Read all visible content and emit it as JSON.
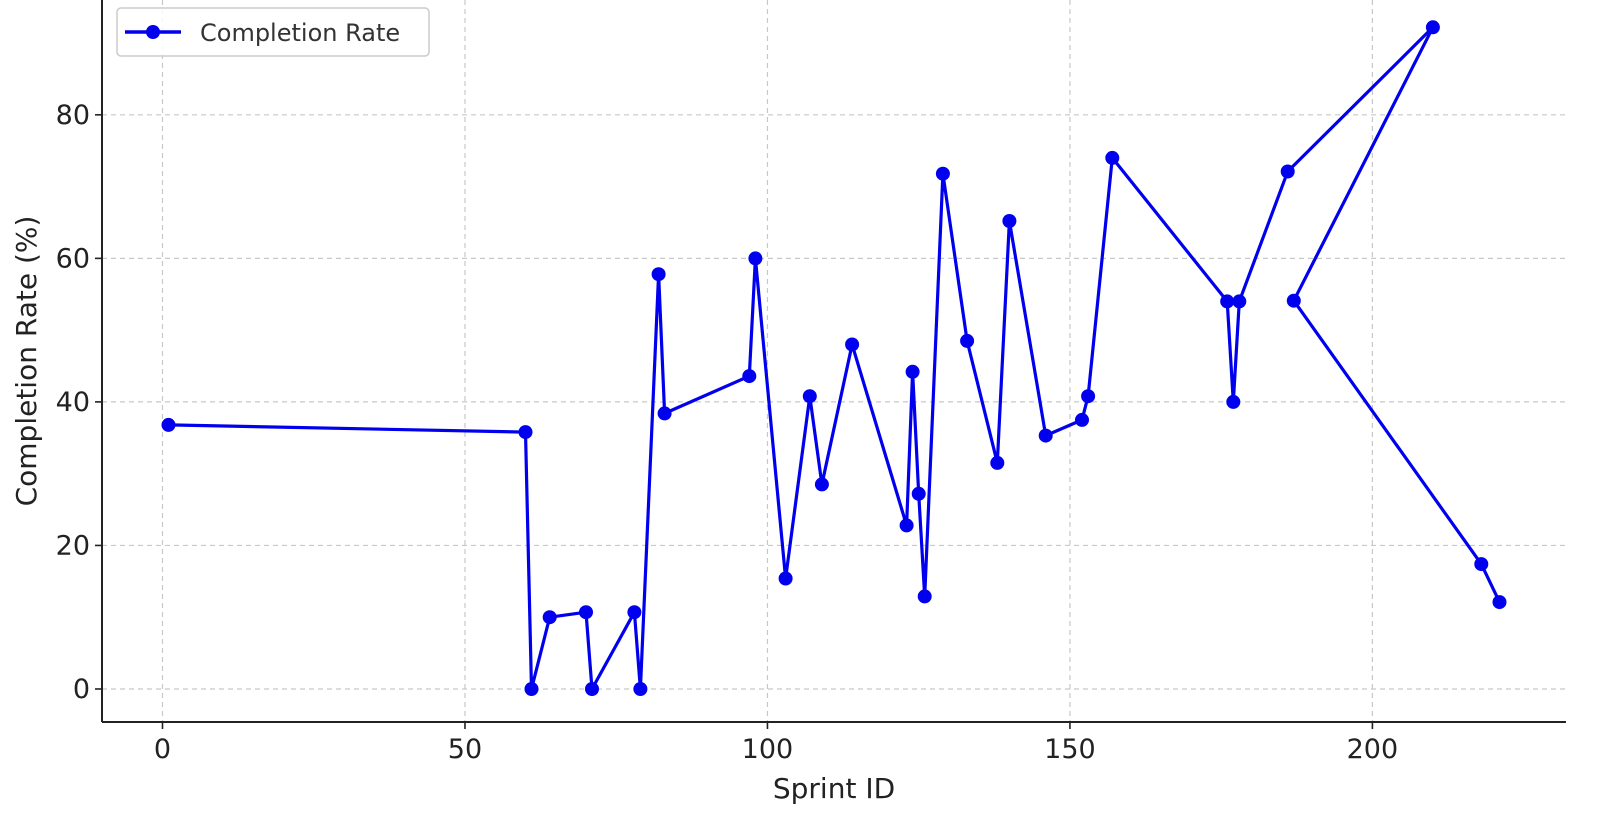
{
  "chart_data": {
    "type": "line",
    "xlabel": "Sprint ID",
    "ylabel": "Completion Rate (%)",
    "xlim": [
      -10,
      232
    ],
    "ylim": [
      -4.6,
      96
    ],
    "xticks": [
      0,
      50,
      100,
      150,
      200
    ],
    "yticks": [
      0,
      20,
      40,
      60,
      80
    ],
    "grid": true,
    "legend_position": "top-left",
    "series": [
      {
        "name": "Completion Rate",
        "color": "#0000ee",
        "marker": "circle",
        "x": [
          1,
          60,
          61,
          64,
          70,
          71,
          78,
          79,
          82,
          83,
          97,
          98,
          103,
          107,
          109,
          114,
          123,
          124,
          125,
          126,
          129,
          133,
          138,
          140,
          146,
          152,
          153,
          157,
          176,
          177,
          178,
          186,
          210,
          187,
          218,
          221
        ],
        "y": [
          36.8,
          35.8,
          0,
          10,
          10.7,
          0,
          10.7,
          0,
          57.8,
          38.4,
          43.6,
          60,
          15.4,
          40.8,
          28.5,
          48,
          22.8,
          44.2,
          27.2,
          12.9,
          71.8,
          48.5,
          31.5,
          65.2,
          35.3,
          37.5,
          40.8,
          74,
          54,
          40,
          54,
          72.1,
          92.2,
          54.1,
          17.4,
          12.1
        ]
      }
    ]
  }
}
